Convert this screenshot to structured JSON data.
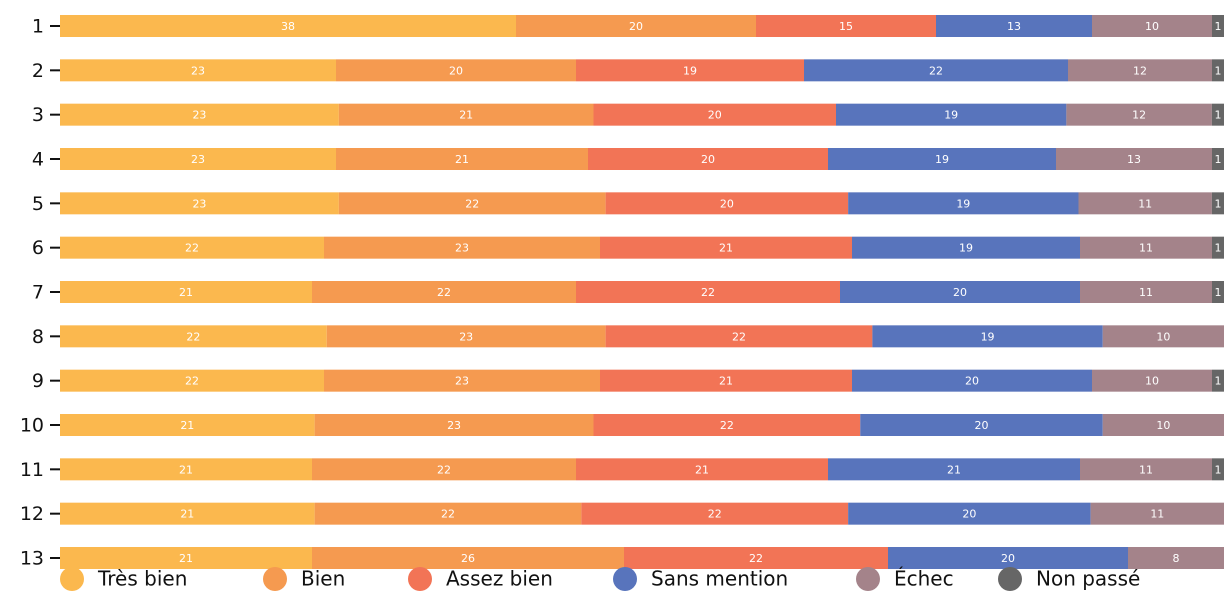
{
  "chart_data": {
    "type": "bar",
    "orientation": "horizontal",
    "stack": "normalize",
    "categories": [
      "1",
      "2",
      "3",
      "4",
      "5",
      "6",
      "7",
      "8",
      "9",
      "10",
      "11",
      "12",
      "13"
    ],
    "series": [
      {
        "name": "Très bien",
        "color": "#fbb84e",
        "values": [
          38,
          23,
          23,
          23,
          23,
          22,
          21,
          22,
          22,
          21,
          21,
          21,
          21
        ]
      },
      {
        "name": "Bien",
        "color": "#f59a50",
        "values": [
          20,
          20,
          21,
          21,
          22,
          23,
          22,
          23,
          23,
          23,
          22,
          22,
          26
        ]
      },
      {
        "name": "Assez bien",
        "color": "#f27456",
        "values": [
          15,
          19,
          20,
          20,
          20,
          21,
          22,
          22,
          21,
          22,
          21,
          22,
          22
        ]
      },
      {
        "name": "Sans mention",
        "color": "#5874bc",
        "values": [
          13,
          22,
          19,
          19,
          19,
          19,
          20,
          19,
          20,
          20,
          21,
          20,
          20
        ]
      },
      {
        "name": "Échec",
        "color": "#a4838a",
        "values": [
          10,
          12,
          12,
          13,
          11,
          11,
          11,
          10,
          10,
          10,
          11,
          11,
          8
        ]
      },
      {
        "name": "Non passé",
        "color": "#666666",
        "values": [
          1,
          1,
          1,
          1,
          1,
          1,
          1,
          0,
          1,
          0,
          1,
          0,
          0
        ]
      }
    ],
    "legend": "bottom"
  }
}
